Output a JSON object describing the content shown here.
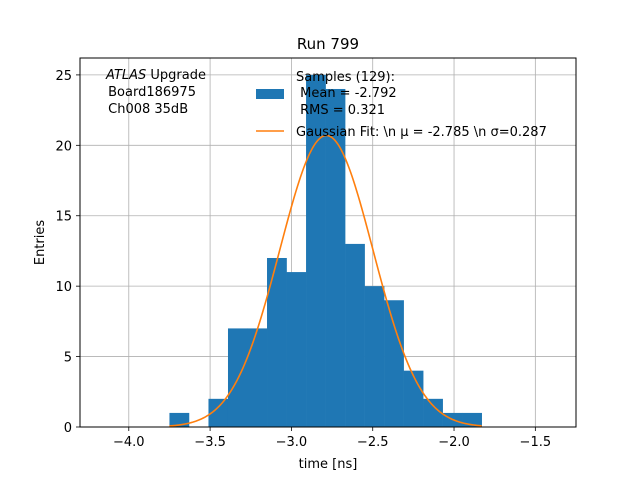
{
  "chart_data": {
    "type": "bar",
    "title": "Run 799",
    "xlabel": "time [ns]",
    "ylabel": "Entries",
    "xlim": [
      -4.3,
      -1.25
    ],
    "ylim": [
      0,
      26.2
    ],
    "xticks": [
      -4.0,
      -3.5,
      -3.0,
      -2.5,
      -2.0,
      -1.5
    ],
    "xtick_labels": [
      "−4.0",
      "−3.5",
      "−3.0",
      "−2.5",
      "−2.0",
      "−1.5"
    ],
    "yticks": [
      0,
      5,
      10,
      15,
      20,
      25
    ],
    "ytick_labels": [
      "0",
      "5",
      "10",
      "15",
      "20",
      "25"
    ],
    "grid": true,
    "legend_position": "top-right",
    "histogram": {
      "name": "Samples (129):\n Mean = -2.792\n RMS = 0.321",
      "color": "#1f77b4",
      "bin_edges": [
        -3.75,
        -3.63,
        -3.51,
        -3.39,
        -3.27,
        -3.15,
        -3.03,
        -2.91,
        -2.79,
        -2.67,
        -2.55,
        -2.43,
        -2.31,
        -2.19,
        -2.07,
        -1.95,
        -1.83
      ],
      "counts": [
        1,
        0,
        2,
        7,
        7,
        12,
        11,
        25,
        24,
        13,
        10,
        9,
        4,
        2,
        1,
        1
      ]
    },
    "fit": {
      "name": "Gaussian Fit: \\n $\\mu$ = -2.785 \\n $\\sigma$=0.287",
      "color": "#ff7f0e",
      "mu": -2.785,
      "sigma": 0.287,
      "amplitude": 20.7,
      "x_range": [
        -3.75,
        -1.83
      ]
    },
    "legend": [
      {
        "lines": [
          "Samples (129):",
          " Mean = -2.792",
          " RMS = 0.321"
        ],
        "kind": "patch"
      },
      {
        "lines": [
          "Gaussian Fit: \\n μ = -2.785 \\n σ=0.287"
        ],
        "kind": "line"
      }
    ],
    "annotation": {
      "italic": "ATLAS",
      "line1_rest": " Upgrade",
      "line2": " Board186975",
      "line3": " Ch008 35dB"
    }
  }
}
